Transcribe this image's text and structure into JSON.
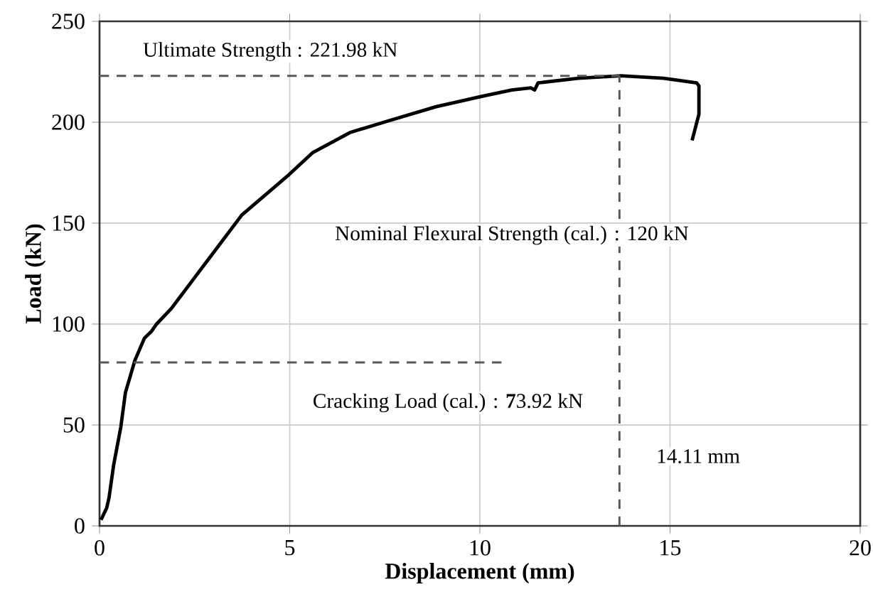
{
  "chart_data": {
    "type": "line",
    "xlabel": "Displacement  (mm)",
    "ylabel": "Load (kN)",
    "xlim": [
      0,
      20
    ],
    "ylim": [
      0,
      250
    ],
    "xticks": [
      0,
      5,
      10,
      15,
      20
    ],
    "yticks": [
      0,
      50,
      100,
      150,
      200,
      250
    ],
    "grid": true,
    "marker": "none",
    "series": [
      {
        "color": "#000000",
        "line_style": "solid",
        "x": [
          0.04,
          0.19,
          0.25,
          0.37,
          0.56,
          0.68,
          0.93,
          1.18,
          1.37,
          1.5,
          1.9,
          2.3,
          2.9,
          3.74,
          4.98,
          5.61,
          6.6,
          7.6,
          8.85,
          10.09,
          10.84,
          11.34,
          11.44,
          11.53,
          12.59,
          13.71,
          14.83,
          15.7,
          15.76,
          15.76,
          15.58
        ],
        "values": [
          3,
          9,
          14,
          30,
          49,
          66,
          82,
          93,
          96.5,
          100,
          108,
          118,
          133,
          154,
          174,
          185,
          195,
          200.7,
          207.7,
          213,
          216,
          217,
          216,
          219.5,
          221.8,
          223,
          221.8,
          219.5,
          218,
          204,
          191
        ]
      },
      {
        "color": "#595959",
        "line_style": "dashed",
        "x": [
          0,
          13.67
        ],
        "values": [
          223,
          223
        ]
      },
      {
        "color": "#595959",
        "line_style": "dashed",
        "x": [
          0,
          10.65
        ],
        "values": [
          81,
          81
        ]
      },
      {
        "color": "#595959",
        "line_style": "dashed",
        "x": [
          13.67,
          13.67
        ],
        "values": [
          0,
          223
        ]
      }
    ],
    "annotations": [
      "Ultimate Strength : 221.98 kN",
      "Nominal Flexural Strength (cal.) : 120 kN",
      "Cracking Load (cal.) : **7**3.92 kN",
      "14.11 mm"
    ]
  }
}
